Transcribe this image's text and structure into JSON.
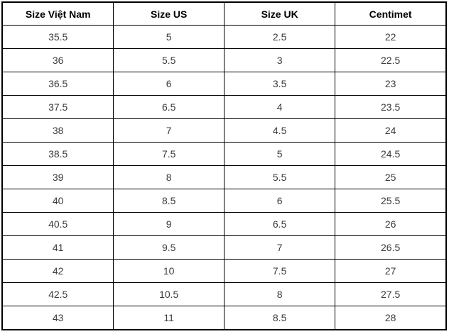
{
  "table": {
    "headers": [
      "Size Việt Nam",
      "Size US",
      "Size UK",
      "Centimet"
    ],
    "rows": [
      [
        "35.5",
        "5",
        "2.5",
        "22"
      ],
      [
        "36",
        "5.5",
        "3",
        "22.5"
      ],
      [
        "36.5",
        "6",
        "3.5",
        "23"
      ],
      [
        "37.5",
        "6.5",
        "4",
        "23.5"
      ],
      [
        "38",
        "7",
        "4.5",
        "24"
      ],
      [
        "38.5",
        "7.5",
        "5",
        "24.5"
      ],
      [
        "39",
        "8",
        "5.5",
        "25"
      ],
      [
        "40",
        "8.5",
        "6",
        "25.5"
      ],
      [
        "40.5",
        "9",
        "6.5",
        "26"
      ],
      [
        "41",
        "9.5",
        "7",
        "26.5"
      ],
      [
        "42",
        "10",
        "7.5",
        "27"
      ],
      [
        "42.5",
        "10.5",
        "8",
        "27.5"
      ],
      [
        "43",
        "11",
        "8.5",
        "28"
      ]
    ]
  },
  "colors": {
    "border": "#000000",
    "header_text": "#000000",
    "cell_text": "#3b3b3b",
    "background": "#ffffff"
  }
}
